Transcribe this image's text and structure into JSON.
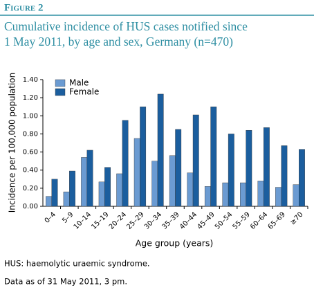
{
  "figure_label": "Figure 2",
  "chart_data": {
    "type": "bar",
    "title": "Cumulative incidence of HUS cases notified since 1 May 2011, by age and sex, Germany (n=470)",
    "x_label": "Age group (years)",
    "y_label": "Incidence per 100,000 population",
    "categories": [
      "0–4",
      "5–9",
      "10–14",
      "15–19",
      "20–24",
      "25–29",
      "30–34",
      "35–39",
      "40–44",
      "45–49",
      "50–54",
      "55–59",
      "60–64",
      "65–69",
      "≥70"
    ],
    "series": [
      {
        "name": "Male",
        "color": "#6b9bd2",
        "values": [
          0.11,
          0.16,
          0.54,
          0.27,
          0.36,
          0.75,
          0.5,
          0.56,
          0.37,
          0.22,
          0.26,
          0.26,
          0.28,
          0.21,
          0.24
        ]
      },
      {
        "name": "Female",
        "color": "#1b5e9e",
        "values": [
          0.3,
          0.39,
          0.62,
          0.43,
          0.95,
          1.1,
          1.24,
          0.85,
          1.01,
          1.1,
          0.8,
          0.84,
          0.87,
          0.67,
          0.63
        ]
      }
    ],
    "ylim": [
      0,
      1.4
    ],
    "yticks": [
      {
        "value": 0,
        "label": "0.00"
      },
      {
        "value": 0.2,
        "label": "0.20"
      },
      {
        "value": 0.4,
        "label": "0.40"
      },
      {
        "value": 0.6,
        "label": "0.60"
      },
      {
        "value": 0.8,
        "label": "0.80"
      },
      {
        "value": 1.0,
        "label": "1.00"
      },
      {
        "value": 1.2,
        "label": "1.20"
      },
      {
        "value": 1.4,
        "label": "1.40"
      }
    ],
    "grid": false,
    "legend": "top-left"
  },
  "footnotes": [
    "HUS: haemolytic uraemic syndrome.",
    "Data as of 31 May 2011, 3 pm."
  ]
}
